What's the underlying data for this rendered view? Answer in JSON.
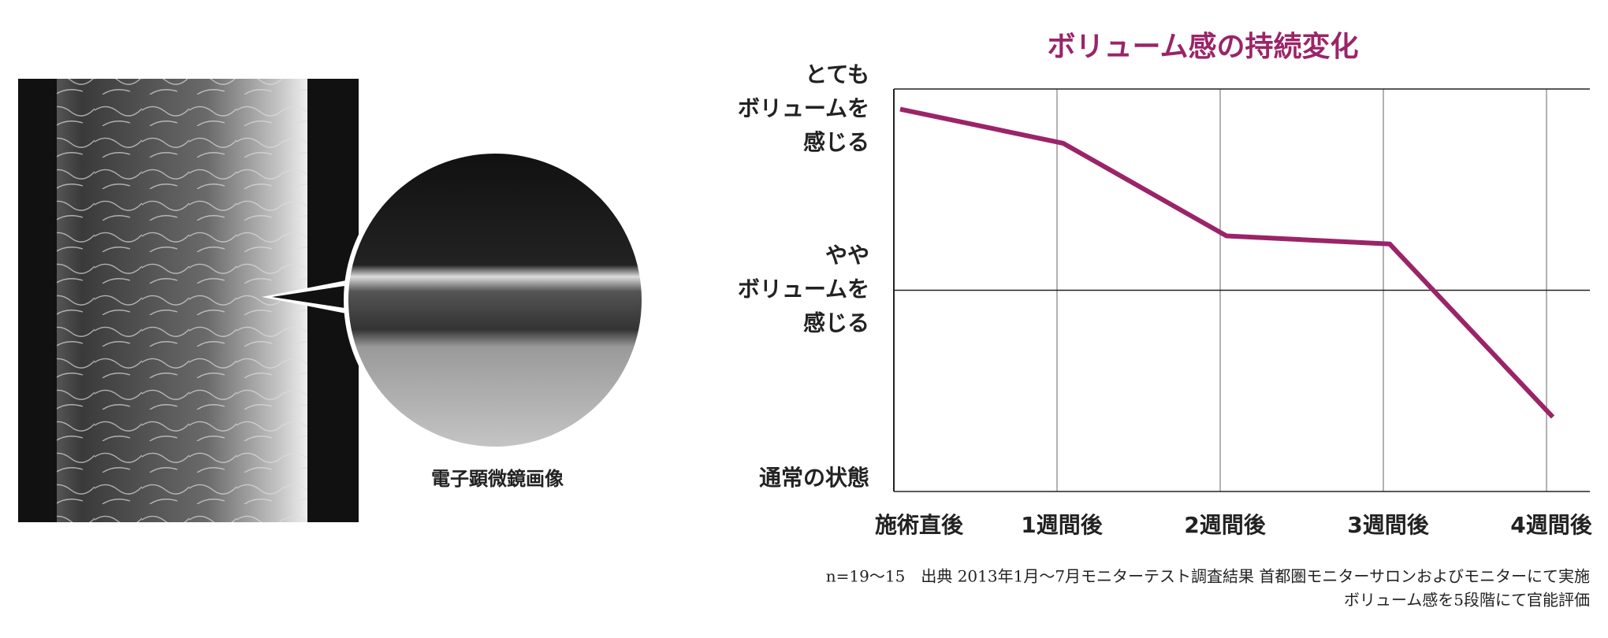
{
  "chart_data": {
    "type": "line",
    "title": "ボリューム感の持続変化",
    "categories": [
      "施術直後",
      "1週間後",
      "2週間後",
      "3週間後",
      "4週間後"
    ],
    "series": [
      {
        "color": "#9b2468",
        "values": [
          4.8,
          4.46,
          3.54,
          3.46,
          1.74
        ]
      }
    ],
    "ylim": [
      1,
      5
    ],
    "yticks": [
      {
        "value": 1,
        "label": [
          "通常の状態"
        ]
      },
      {
        "value": 3,
        "label": [
          "やや",
          "ボリュームを",
          "感じる"
        ]
      },
      {
        "value": 5,
        "label": [
          "とても",
          "ボリュームを",
          "感じる"
        ]
      }
    ],
    "grid": true,
    "notes": [
      "n=19〜15　出典 2013年1月〜7月モニターテスト調査結果 首都圏モニターサロンおよびモニターにて実施",
      "ボリューム感を5段階にて官能評価"
    ]
  },
  "figure": {
    "caption": "電子顕微鏡画像"
  }
}
